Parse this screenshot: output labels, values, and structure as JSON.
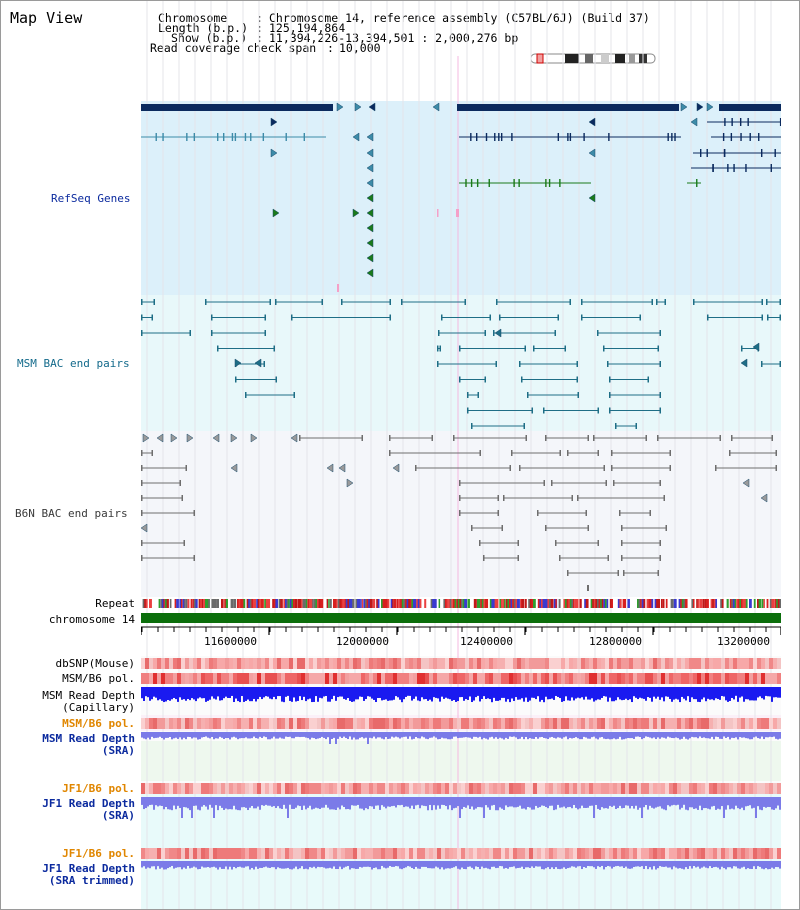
{
  "title": "Map View",
  "header": {
    "chromosome_key": "Chromosome",
    "chromosome_value": "Chromosome 14, reference assembly (C57BL/6J) (Build 37)",
    "length_key": "Length (b.p.)",
    "length_value": "125,194,864",
    "show_key": "Show (b.p.)",
    "show_value": "11,394,226-13,394,501 : 2,000,276 bp",
    "coverage_key": "Read coverage check span",
    "coverage_value": "10,000"
  },
  "tracks": {
    "refseq": "RefSeq Genes",
    "msm_bac": "MSM BAC end pairs",
    "b6n_bac": "B6N BAC end pairs",
    "repeat": "Repeat",
    "chromosome": "chromosome 14",
    "dbsnp": "dbSNP(Mouse)",
    "msm_b6_pol_1": "MSM/B6 pol.",
    "msm_read_depth_cap_1": "MSM Read Depth",
    "msm_read_depth_cap_2": "(Capillary)",
    "msm_b6_pol_2": "MSM/B6 pol.",
    "msm_read_depth_sra_1": "MSM Read Depth",
    "msm_read_depth_sra_2": "(SRA)",
    "jf1_b6_pol_1": "JF1/B6 pol.",
    "jf1_read_depth_sra_1": "JF1 Read Depth",
    "jf1_read_depth_sra_2": "(SRA)",
    "jf1_b6_pol_2": "JF1/B6 pol.",
    "jf1_read_depth_trim_1": "JF1 Read Depth",
    "jf1_read_depth_trim_2": "(SRA trimmed)"
  },
  "ruler": {
    "ticks": [
      "11600000",
      "12000000",
      "12400000",
      "12800000",
      "13200000"
    ]
  },
  "colors": {
    "refseq_bg": "#dcf0fa",
    "msm_bac_bg": "#e8f8fa",
    "b6n_bac_bg": "#f4f6fa",
    "gene_dark": "#0b2a5e",
    "gene_teal": "#3d8ba8",
    "gene_green": "#1a7a1a",
    "bac_teal": "#1e6e86",
    "bac_gray": "#6e6e6e",
    "chrom_green": "#0b6e0b",
    "snp_red": "#f2a0a0",
    "depth_blue": "#1a1af0",
    "depth_purple": "#7b7be8",
    "label_blue": "#0b2a9e",
    "label_orange": "#e08600"
  }
}
